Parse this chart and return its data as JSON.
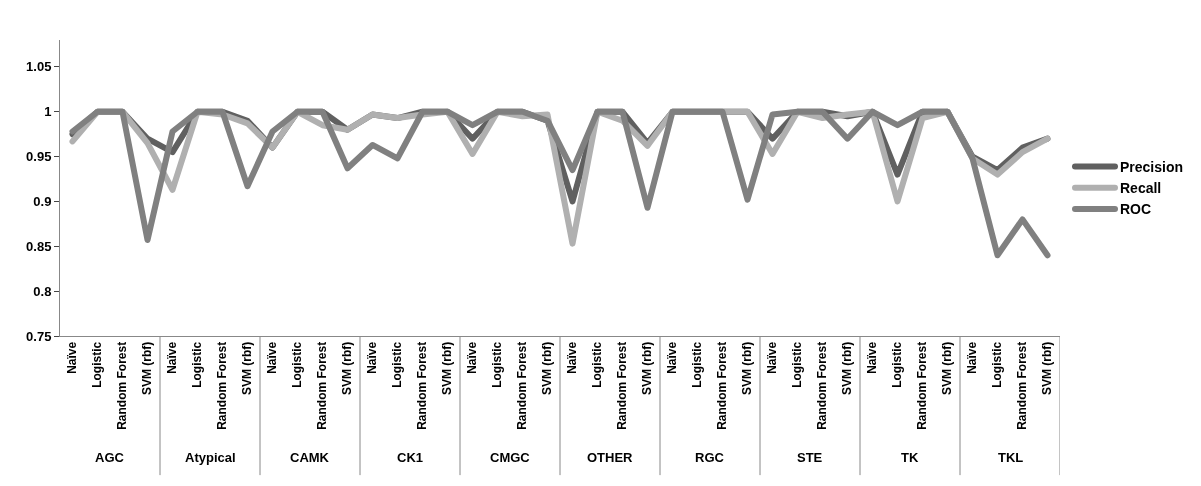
{
  "chart_data": {
    "type": "line",
    "categories": [
      "Naïve",
      "Logistic",
      "Random Forest",
      "SVM (rbf)",
      "Naïve",
      "Logistic",
      "Random Forest",
      "SVM (rbf)",
      "Naïve",
      "Logistic",
      "Random Forest",
      "SVM (rbf)",
      "Naïve",
      "Logistic",
      "Random Forest",
      "SVM (rbf)",
      "Naïve",
      "Logistic",
      "Random Forest",
      "SVM (rbf)",
      "Naïve",
      "Logistic",
      "Random Forest",
      "SVM (rbf)",
      "Naïve",
      "Logistic",
      "Random Forest",
      "SVM (rbf)",
      "Naïve",
      "Logistic",
      "Random Forest",
      "SVM (rbf)",
      "Naïve",
      "Logistic",
      "Random Forest",
      "SVM (rbf)",
      "Naïve",
      "Logistic",
      "Random Forest",
      "SVM (rbf)"
    ],
    "annotations": [
      "AGC",
      "Atypical",
      "CAMK",
      "CK1",
      "CMGC",
      "OTHER",
      "RGC",
      "STE",
      "TK",
      "TKL"
    ],
    "series": [
      {
        "name": "Precision",
        "color": "#606060",
        "values": [
          0.975,
          1,
          1,
          0.97,
          0.955,
          1,
          1,
          0.99,
          0.96,
          1,
          1,
          0.98,
          0.997,
          0.993,
          1,
          1,
          0.97,
          1,
          1,
          0.99,
          0.9,
          1,
          1,
          0.965,
          1,
          1,
          1,
          1,
          0.97,
          1,
          1,
          0.995,
          1,
          0.93,
          1,
          1,
          0.95,
          0.935,
          0.96,
          0.97
        ]
      },
      {
        "name": "Recall",
        "color": "#b0b0b0",
        "values": [
          0.967,
          1,
          1,
          0.965,
          0.913,
          1,
          0.997,
          0.987,
          0.96,
          1,
          0.985,
          0.98,
          0.997,
          0.993,
          0.997,
          1,
          0.953,
          1,
          0.995,
          0.997,
          0.853,
          1,
          0.99,
          0.962,
          1,
          1,
          1,
          1,
          0.953,
          1,
          0.993,
          0.997,
          1,
          0.9,
          0.993,
          1,
          0.948,
          0.93,
          0.955,
          0.97
        ]
      },
      {
        "name": "ROC",
        "color": "#808080",
        "values": [
          0.978,
          1,
          1,
          0.857,
          0.978,
          1,
          1,
          0.917,
          0.978,
          1,
          1,
          0.937,
          0.963,
          0.948,
          1,
          1,
          0.985,
          1,
          1,
          0.99,
          0.935,
          1,
          1,
          0.893,
          1,
          1,
          1,
          0.902,
          0.997,
          1,
          1,
          0.97,
          1,
          0.985,
          1,
          1,
          0.948,
          0.84,
          0.88,
          0.84
        ]
      }
    ],
    "ylim": [
      0.75,
      1.08
    ],
    "yticks": [
      0.75,
      0.8,
      0.85,
      0.9,
      0.95,
      1,
      1.05
    ],
    "legend": "right",
    "marker": "none",
    "line_style": "solid"
  }
}
